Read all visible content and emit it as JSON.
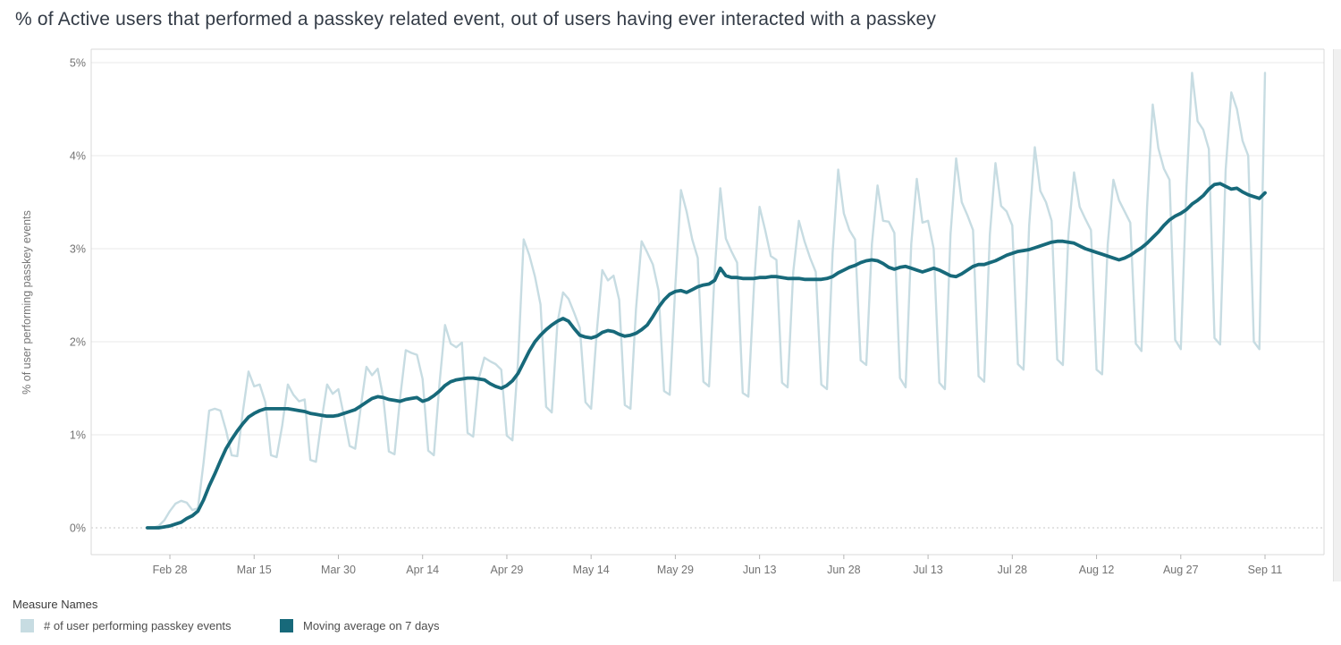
{
  "title": "% of Active users that performed a passkey related event, out of users having ever interacted with a passkey",
  "legend": {
    "title": "Measure Names",
    "items": [
      {
        "label": "# of user performing passkey events",
        "color": "#c7dce2"
      },
      {
        "label": "Moving average on 7 days",
        "color": "#17697a"
      }
    ]
  },
  "colors": {
    "raw_series": "#c7dce2",
    "moving_average": "#17697a",
    "gridline": "#e8e8e8",
    "zero_line": "#c7c7c7",
    "plot_border": "#d9d9d9",
    "tick_text": "#737373",
    "title_text": "#333b46"
  },
  "chart_data": {
    "type": "line",
    "title": "% of Active users that performed a passkey related event, out of users having ever interacted with a passkey",
    "xlabel": "",
    "ylabel": "% of user performing passkey events",
    "ylim": [
      0,
      5
    ],
    "y_unit": "%",
    "grid": true,
    "legend_position": "bottom",
    "y_ticks": [
      "0%",
      "1%",
      "2%",
      "3%",
      "4%",
      "5%"
    ],
    "y_tick_values": [
      0,
      1,
      2,
      3,
      4,
      5
    ],
    "x_ticks": [
      "Feb 28",
      "Mar 15",
      "Mar 30",
      "Apr 14",
      "Apr 29",
      "May 14",
      "May 29",
      "Jun 13",
      "Jun 28",
      "Jul 13",
      "Jul 28",
      "Aug 12",
      "Aug 27",
      "Sep 11"
    ],
    "x": [
      "Feb 24",
      "Feb 25",
      "Feb 26",
      "Feb 27",
      "Feb 28",
      "Mar 1",
      "Mar 2",
      "Mar 3",
      "Mar 4",
      "Mar 5",
      "Mar 6",
      "Mar 7",
      "Mar 8",
      "Mar 9",
      "Mar 10",
      "Mar 11",
      "Mar 12",
      "Mar 13",
      "Mar 14",
      "Mar 15",
      "Mar 16",
      "Mar 17",
      "Mar 18",
      "Mar 19",
      "Mar 20",
      "Mar 21",
      "Mar 22",
      "Mar 23",
      "Mar 24",
      "Mar 25",
      "Mar 26",
      "Mar 27",
      "Mar 28",
      "Mar 29",
      "Mar 30",
      "Mar 31",
      "Apr 1",
      "Apr 2",
      "Apr 3",
      "Apr 4",
      "Apr 5",
      "Apr 6",
      "Apr 7",
      "Apr 8",
      "Apr 9",
      "Apr 10",
      "Apr 11",
      "Apr 12",
      "Apr 13",
      "Apr 14",
      "Apr 15",
      "Apr 16",
      "Apr 17",
      "Apr 18",
      "Apr 19",
      "Apr 20",
      "Apr 21",
      "Apr 22",
      "Apr 23",
      "Apr 24",
      "Apr 25",
      "Apr 26",
      "Apr 27",
      "Apr 28",
      "Apr 29",
      "Apr 30",
      "May 1",
      "May 2",
      "May 3",
      "May 4",
      "May 5",
      "May 6",
      "May 7",
      "May 8",
      "May 9",
      "May 10",
      "May 11",
      "May 12",
      "May 13",
      "May 14",
      "May 15",
      "May 16",
      "May 17",
      "May 18",
      "May 19",
      "May 20",
      "May 21",
      "May 22",
      "May 23",
      "May 24",
      "May 25",
      "May 26",
      "May 27",
      "May 28",
      "May 29",
      "May 30",
      "May 31",
      "Jun 1",
      "Jun 2",
      "Jun 3",
      "Jun 4",
      "Jun 5",
      "Jun 6",
      "Jun 7",
      "Jun 8",
      "Jun 9",
      "Jun 10",
      "Jun 11",
      "Jun 12",
      "Jun 13",
      "Jun 14",
      "Jun 15",
      "Jun 16",
      "Jun 17",
      "Jun 18",
      "Jun 19",
      "Jun 20",
      "Jun 21",
      "Jun 22",
      "Jun 23",
      "Jun 24",
      "Jun 25",
      "Jun 26",
      "Jun 27",
      "Jun 28",
      "Jun 29",
      "Jun 30",
      "Jul 1",
      "Jul 2",
      "Jul 3",
      "Jul 4",
      "Jul 5",
      "Jul 6",
      "Jul 7",
      "Jul 8",
      "Jul 9",
      "Jul 10",
      "Jul 11",
      "Jul 12",
      "Jul 13",
      "Jul 14",
      "Jul 15",
      "Jul 16",
      "Jul 17",
      "Jul 18",
      "Jul 19",
      "Jul 20",
      "Jul 21",
      "Jul 22",
      "Jul 23",
      "Jul 24",
      "Jul 25",
      "Jul 26",
      "Jul 27",
      "Jul 28",
      "Jul 29",
      "Jul 30",
      "Jul 31",
      "Aug 1",
      "Aug 2",
      "Aug 3",
      "Aug 4",
      "Aug 5",
      "Aug 6",
      "Aug 7",
      "Aug 8",
      "Aug 9",
      "Aug 10",
      "Aug 11",
      "Aug 12",
      "Aug 13",
      "Aug 14",
      "Aug 15",
      "Aug 16",
      "Aug 17",
      "Aug 18",
      "Aug 19",
      "Aug 20",
      "Aug 21",
      "Aug 22",
      "Aug 23",
      "Aug 24",
      "Aug 25",
      "Aug 26",
      "Aug 27",
      "Aug 28",
      "Aug 29",
      "Aug 30",
      "Aug 31",
      "Sep 1",
      "Sep 2",
      "Sep 3",
      "Sep 4",
      "Sep 5",
      "Sep 6",
      "Sep 7",
      "Sep 8",
      "Sep 9",
      "Sep 10",
      "Sep 11"
    ],
    "series": [
      {
        "name": "# of user performing passkey events",
        "color": "#c7dce2",
        "values": [
          0,
          0,
          0.02,
          0.08,
          0.18,
          0.26,
          0.29,
          0.27,
          0.19,
          0.21,
          0.7,
          1.26,
          1.28,
          1.26,
          1.05,
          0.78,
          0.77,
          1.25,
          1.68,
          1.52,
          1.54,
          1.35,
          0.78,
          0.76,
          1.1,
          1.54,
          1.43,
          1.36,
          1.38,
          0.73,
          0.71,
          1.15,
          1.54,
          1.44,
          1.49,
          1.2,
          0.88,
          0.85,
          1.3,
          1.73,
          1.64,
          1.71,
          1.4,
          0.82,
          0.79,
          1.4,
          1.91,
          1.88,
          1.86,
          1.6,
          0.83,
          0.78,
          1.55,
          2.18,
          1.98,
          1.94,
          1.99,
          1.02,
          0.98,
          1.6,
          1.83,
          1.79,
          1.76,
          1.7,
          0.99,
          0.94,
          1.8,
          3.1,
          2.93,
          2.7,
          2.4,
          1.3,
          1.24,
          2.2,
          2.53,
          2.46,
          2.31,
          2.15,
          1.35,
          1.28,
          2.1,
          2.77,
          2.66,
          2.71,
          2.45,
          1.32,
          1.28,
          2.35,
          3.08,
          2.96,
          2.83,
          2.55,
          1.47,
          1.43,
          2.6,
          3.63,
          3.4,
          3.1,
          2.9,
          1.57,
          1.52,
          2.75,
          3.65,
          3.11,
          2.97,
          2.85,
          1.45,
          1.41,
          2.6,
          3.45,
          3.2,
          2.92,
          2.88,
          1.56,
          1.51,
          2.75,
          3.3,
          3.08,
          2.9,
          2.75,
          1.54,
          1.49,
          2.95,
          3.85,
          3.38,
          3.2,
          3.1,
          1.8,
          1.75,
          3.05,
          3.68,
          3.3,
          3.29,
          3.17,
          1.61,
          1.51,
          3.05,
          3.75,
          3.28,
          3.3,
          3,
          1.56,
          1.49,
          3.15,
          3.97,
          3.5,
          3.36,
          3.2,
          1.63,
          1.57,
          3.15,
          3.92,
          3.46,
          3.4,
          3.25,
          1.76,
          1.7,
          3.25,
          4.09,
          3.62,
          3.5,
          3.3,
          1.81,
          1.75,
          3.15,
          3.82,
          3.45,
          3.32,
          3.2,
          1.7,
          1.65,
          3.05,
          3.74,
          3.52,
          3.4,
          3.28,
          1.98,
          1.9,
          3.45,
          4.55,
          4.08,
          3.86,
          3.74,
          2.02,
          1.92,
          3.65,
          4.89,
          4.37,
          4.28,
          4.07,
          2.04,
          1.97,
          3.85,
          4.68,
          4.5,
          4.16,
          4,
          2,
          1.92,
          4.89
        ]
      },
      {
        "name": "Moving average on 7 days",
        "color": "#17697a",
        "values": [
          0,
          0,
          0,
          0.01,
          0.02,
          0.04,
          0.06,
          0.1,
          0.13,
          0.18,
          0.3,
          0.45,
          0.58,
          0.72,
          0.85,
          0.95,
          1.04,
          1.12,
          1.19,
          1.23,
          1.26,
          1.28,
          1.28,
          1.28,
          1.28,
          1.28,
          1.27,
          1.26,
          1.25,
          1.23,
          1.22,
          1.21,
          1.2,
          1.2,
          1.21,
          1.23,
          1.25,
          1.27,
          1.31,
          1.35,
          1.39,
          1.41,
          1.4,
          1.38,
          1.37,
          1.36,
          1.38,
          1.39,
          1.4,
          1.36,
          1.38,
          1.42,
          1.47,
          1.53,
          1.57,
          1.59,
          1.6,
          1.61,
          1.61,
          1.6,
          1.59,
          1.55,
          1.52,
          1.5,
          1.53,
          1.58,
          1.66,
          1.78,
          1.9,
          2,
          2.07,
          2.13,
          2.18,
          2.22,
          2.25,
          2.22,
          2.14,
          2.07,
          2.05,
          2.04,
          2.06,
          2.1,
          2.12,
          2.11,
          2.08,
          2.06,
          2.07,
          2.09,
          2.13,
          2.18,
          2.27,
          2.37,
          2.45,
          2.51,
          2.54,
          2.55,
          2.53,
          2.56,
          2.59,
          2.61,
          2.62,
          2.66,
          2.79,
          2.71,
          2.69,
          2.69,
          2.68,
          2.68,
          2.68,
          2.69,
          2.69,
          2.7,
          2.7,
          2.69,
          2.68,
          2.68,
          2.68,
          2.67,
          2.67,
          2.67,
          2.67,
          2.68,
          2.7,
          2.74,
          2.77,
          2.8,
          2.82,
          2.85,
          2.87,
          2.88,
          2.87,
          2.84,
          2.8,
          2.78,
          2.8,
          2.81,
          2.79,
          2.77,
          2.75,
          2.77,
          2.79,
          2.77,
          2.74,
          2.71,
          2.7,
          2.73,
          2.77,
          2.81,
          2.83,
          2.83,
          2.85,
          2.87,
          2.9,
          2.93,
          2.95,
          2.97,
          2.98,
          2.99,
          3.01,
          3.03,
          3.05,
          3.07,
          3.08,
          3.08,
          3.07,
          3.06,
          3.03,
          3,
          2.98,
          2.96,
          2.94,
          2.92,
          2.9,
          2.88,
          2.9,
          2.93,
          2.97,
          3.01,
          3.06,
          3.12,
          3.18,
          3.25,
          3.31,
          3.35,
          3.38,
          3.42,
          3.48,
          3.52,
          3.57,
          3.64,
          3.69,
          3.7,
          3.67,
          3.64,
          3.65,
          3.61,
          3.58,
          3.56,
          3.54,
          3.6
        ]
      }
    ]
  }
}
